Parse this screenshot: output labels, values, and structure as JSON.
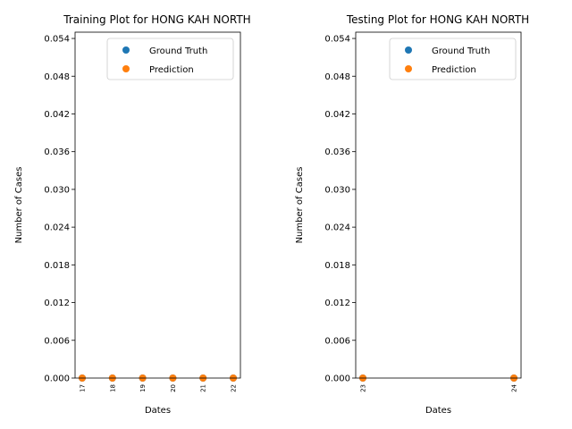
{
  "colors": {
    "ground_truth": "#1f77b4",
    "prediction": "#ff7f0e"
  },
  "chart_data": [
    {
      "type": "scatter",
      "title": "Training Plot for HONG KAH NORTH",
      "xlabel": "Dates",
      "ylabel": "Number of Cases",
      "x": [
        "17",
        "18",
        "19",
        "20",
        "21",
        "22"
      ],
      "series": [
        {
          "name": "Ground Truth",
          "values": [
            0,
            0,
            0,
            0,
            0,
            0
          ]
        },
        {
          "name": "Prediction",
          "values": [
            0,
            0,
            0,
            0,
            0,
            0
          ]
        }
      ],
      "yticks": [
        "0.000",
        "0.006",
        "0.012",
        "0.018",
        "0.024",
        "0.030",
        "0.036",
        "0.042",
        "0.048",
        "0.054"
      ],
      "ylim": [
        0,
        0.055
      ],
      "legend": "top-right",
      "grid": false
    },
    {
      "type": "scatter",
      "title": "Testing Plot for HONG KAH NORTH",
      "xlabel": "Dates",
      "ylabel": "Number of Cases",
      "x": [
        "23",
        "24"
      ],
      "series": [
        {
          "name": "Ground Truth",
          "values": [
            0,
            0
          ]
        },
        {
          "name": "Prediction",
          "values": [
            0,
            0
          ]
        }
      ],
      "yticks": [
        "0.000",
        "0.006",
        "0.012",
        "0.018",
        "0.024",
        "0.030",
        "0.036",
        "0.042",
        "0.048",
        "0.054"
      ],
      "ylim": [
        0,
        0.055
      ],
      "legend": "top-right",
      "grid": false
    }
  ]
}
